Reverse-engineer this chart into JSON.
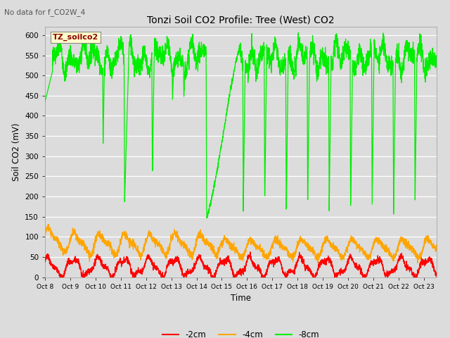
{
  "title": "Tonzi Soil CO2 Profile: Tree (West) CO2",
  "subtitle": "No data for f_CO2W_4",
  "xlabel": "Time",
  "ylabel": "Soil CO2 (mV)",
  "ylim": [
    0,
    620
  ],
  "yticks": [
    0,
    50,
    100,
    150,
    200,
    250,
    300,
    350,
    400,
    450,
    500,
    550,
    600
  ],
  "bg_color": "#dcdcdc",
  "grid_color": "#ffffff",
  "line_colors": {
    "2cm": "#ff0000",
    "4cm": "#ffa500",
    "8cm": "#00ee00"
  },
  "legend_labels": [
    "-2cm",
    "-4cm",
    "-8cm"
  ],
  "legend_colors": [
    "#ff0000",
    "#ffa500",
    "#00ee00"
  ],
  "inset_label": "TZ_soilco2",
  "inset_label_color": "#8b0000",
  "inset_bg_color": "#ffffcc",
  "x_tick_labels": [
    "Oct 8",
    "Oct 9",
    "Oct 10",
    "Oct 11",
    "Oct 12",
    "Oct 13",
    "Oct 14",
    "Oct 15",
    "Oct 16",
    "Oct 17",
    "Oct 18",
    "Oct 19",
    "Oct 20",
    "Oct 21",
    "Oct 22",
    "Oct 23"
  ],
  "n_days": 15.5,
  "figsize": [
    6.4,
    4.8
  ],
  "dpi": 100
}
